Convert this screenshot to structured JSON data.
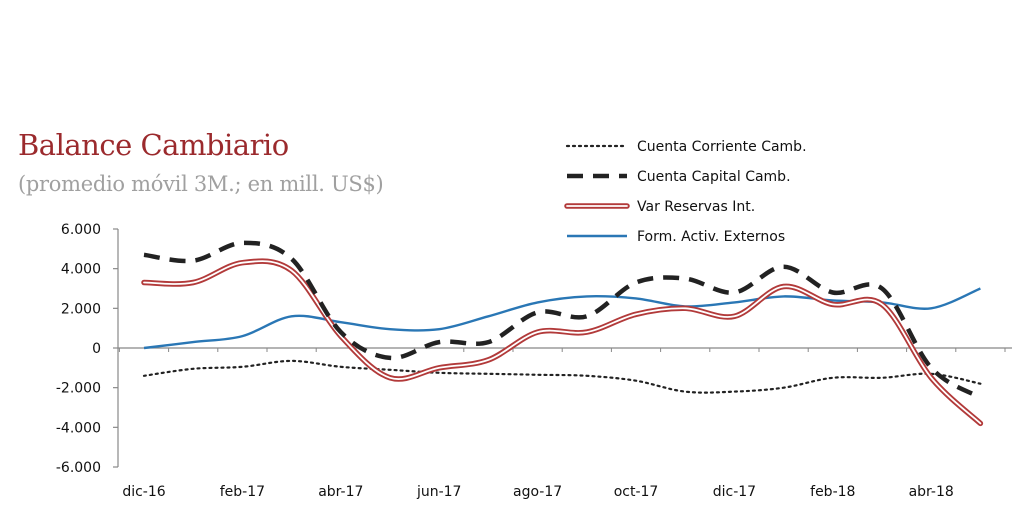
{
  "chart_data": {
    "type": "line",
    "title": "Balance Cambiario",
    "subtitle": "(promedio móvil 3M.; en mill. US$)",
    "xlabel": "",
    "ylabel": "",
    "x": [
      "dic-16",
      "ene-17",
      "feb-17",
      "mar-17",
      "abr-17",
      "may-17",
      "jun-17",
      "jul-17",
      "ago-17",
      "sep-17",
      "oct-17",
      "nov-17",
      "dic-17",
      "ene-18",
      "feb-18",
      "mar-18",
      "abr-18",
      "may-18"
    ],
    "x_tick_labels": [
      "dic-16",
      "feb-17",
      "abr-17",
      "jun-17",
      "ago-17",
      "oct-17",
      "dic-17",
      "feb-18",
      "abr-18"
    ],
    "ylim": [
      -6000,
      6000
    ],
    "y_ticks": [
      6000,
      4000,
      2000,
      0,
      -2000,
      -4000,
      -6000
    ],
    "y_tick_labels": [
      "6.000",
      "4.000",
      "2.000",
      "0",
      "-2.000",
      "-4.000",
      "-6.000"
    ],
    "grid": false,
    "legend_position": "top-right",
    "series": [
      {
        "name": "Cuenta Corriente Camb.",
        "style": "dotted",
        "color": "#222222",
        "values": [
          -1400,
          -1050,
          -950,
          -650,
          -950,
          -1100,
          -1250,
          -1300,
          -1350,
          -1400,
          -1650,
          -2200,
          -2200,
          -2000,
          -1500,
          -1500,
          -1300,
          -1800
        ]
      },
      {
        "name": "Cuenta Capital Camb.",
        "style": "dashed",
        "color": "#222222",
        "values": [
          4700,
          4400,
          5300,
          4500,
          800,
          -500,
          300,
          300,
          1800,
          1600,
          3300,
          3500,
          2800,
          4100,
          2800,
          3000,
          -1000,
          -2500
        ]
      },
      {
        "name": "Var Reservas Int.",
        "style": "double-red",
        "color": "#b23a3a",
        "values": [
          3300,
          3300,
          4300,
          3900,
          600,
          -1500,
          -1000,
          -600,
          800,
          800,
          1700,
          2000,
          1600,
          3100,
          2200,
          2200,
          -1500,
          -3800
        ]
      },
      {
        "name": "Form. Activ. Externos",
        "style": "solid",
        "color": "#2a77b5",
        "values": [
          0,
          300,
          600,
          1600,
          1300,
          950,
          950,
          1600,
          2300,
          2600,
          2500,
          2100,
          2300,
          2600,
          2400,
          2300,
          2000,
          3000
        ]
      }
    ]
  }
}
